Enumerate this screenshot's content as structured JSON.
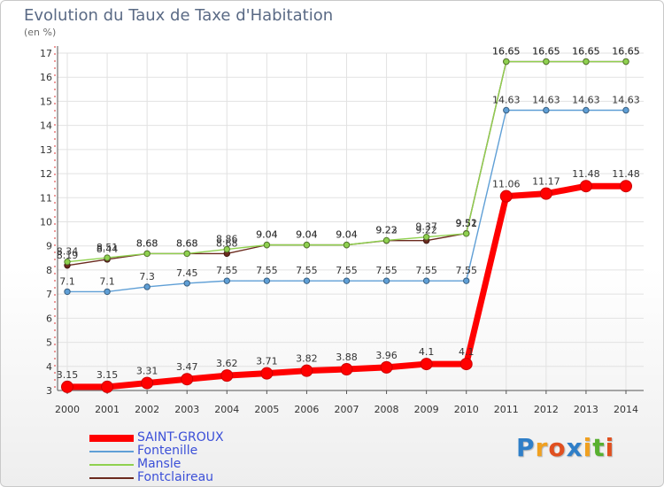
{
  "title": "Evolution du Taux de Taxe d'Habitation",
  "unit_label": "(en %)",
  "logo": {
    "letters": [
      "P",
      "r",
      "o",
      "x",
      "i",
      "t",
      "i"
    ],
    "colors": [
      "#2f7fc8",
      "#f0a020",
      "#e05020",
      "#2f7fc8",
      "#f0a020",
      "#58b030",
      "#e05020"
    ]
  },
  "chart_data": {
    "type": "line",
    "title": "Evolution du Taux de Taxe d'Habitation",
    "ylabel": "(en %)",
    "x": [
      "2000",
      "2001",
      "2002",
      "2003",
      "2004",
      "2005",
      "2006",
      "2007",
      "2008",
      "2009",
      "2010",
      "2011",
      "2012",
      "2013",
      "2014"
    ],
    "ylim": [
      3,
      17
    ],
    "yticks": [
      3,
      4,
      5,
      6,
      7,
      8,
      9,
      10,
      11,
      12,
      13,
      14,
      15,
      16,
      17
    ],
    "grid": true,
    "legend_position": "bottom-left",
    "series": [
      {
        "name": "Fontclaireau",
        "color": "#6b2a1e",
        "values": [
          8.19,
          8.44,
          8.68,
          8.68,
          8.68,
          9.04,
          9.04,
          9.04,
          9.22,
          9.22,
          9.52,
          16.65,
          16.65,
          16.65,
          16.65
        ],
        "labels": [
          "8.19",
          "8.44",
          "8.68",
          "8.68",
          "8.68",
          "9.04",
          "9.04",
          "9.04",
          "9.22",
          "9.22",
          "9.52",
          "16.65",
          "16.65",
          "16.65",
          "16.65"
        ]
      },
      {
        "name": "Mansle",
        "color": "#8fd14f",
        "values": [
          8.34,
          8.51,
          8.68,
          8.68,
          8.86,
          9.04,
          9.04,
          9.04,
          9.23,
          9.37,
          9.51,
          16.65,
          16.65,
          16.65,
          16.65
        ],
        "labels": [
          "8.34",
          "8.51",
          "8.68",
          "8.68",
          "8.86",
          "9.04",
          "9.04",
          "9.04",
          "9.23",
          "9.37",
          "9.51",
          "16.65",
          "16.65",
          "16.65",
          "16.65"
        ]
      },
      {
        "name": "Fontenille",
        "color": "#5f9fd6",
        "values": [
          7.1,
          7.1,
          7.3,
          7.45,
          7.55,
          7.55,
          7.55,
          7.55,
          7.55,
          7.55,
          7.55,
          14.63,
          14.63,
          14.63,
          14.63
        ],
        "labels": [
          "7.1",
          "7.1",
          "7.3",
          "7.45",
          "7.55",
          "7.55",
          "7.55",
          "7.55",
          "7.55",
          "7.55",
          "7.55",
          "14.63",
          "14.63",
          "14.63",
          "14.63"
        ]
      },
      {
        "name": "SAINT-GROUX",
        "color": "#ff0000",
        "values": [
          3.15,
          3.15,
          3.31,
          3.47,
          3.62,
          3.71,
          3.82,
          3.88,
          3.96,
          4.1,
          4.1,
          11.06,
          11.17,
          11.48,
          11.48
        ],
        "labels": [
          "3.15",
          "3.15",
          "3.31",
          "3.47",
          "3.62",
          "3.71",
          "3.82",
          "3.88",
          "3.96",
          "4.1",
          "4.1",
          "11.06",
          "11.17",
          "11.48",
          "11.48"
        ]
      }
    ],
    "legend": [
      "SAINT-GROUX",
      "Fontenille",
      "Mansle",
      "Fontclaireau"
    ]
  }
}
